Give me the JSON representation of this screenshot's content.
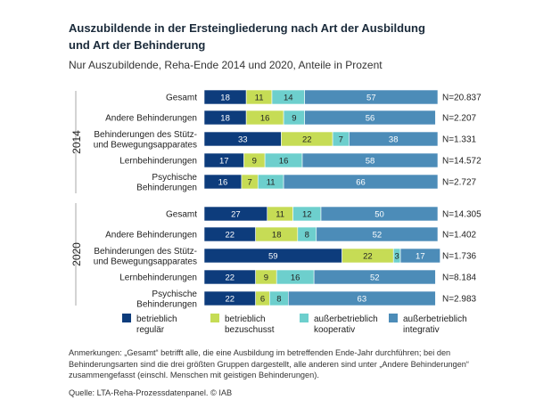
{
  "chart_data": {
    "type": "bar",
    "orientation": "horizontal",
    "stacked": true,
    "title": "Auszubildende in der Ersteingliederung nach Art der Ausbildung und Art der Behinderung",
    "subtitle": "Nur Auszubildende, Reha-Ende 2014 und 2020, Anteile in Prozent",
    "xlim": [
      0,
      100
    ],
    "series": [
      {
        "name": "betrieblich regulär",
        "color": "#0d3c7c",
        "text_color": "#ffffff"
      },
      {
        "name": "betrieblich bezuschusst",
        "color": "#c6dc55",
        "text_color": "#222222"
      },
      {
        "name": "außerbetrieblich kooperativ",
        "color": "#6dcfcd",
        "text_color": "#222222"
      },
      {
        "name": "außerbetrieblich integrativ",
        "color": "#4c8cb8",
        "text_color": "#ffffff"
      }
    ],
    "legend": [
      {
        "line1": "betrieblich",
        "line2": "regulär"
      },
      {
        "line1": "betrieblich",
        "line2": "bezuschusst"
      },
      {
        "line1": "außerbetrieblich",
        "line2": "kooperativ"
      },
      {
        "line1": "außerbetrieblich",
        "line2": "integrativ"
      }
    ],
    "groups": [
      {
        "year": "2014",
        "rows": [
          {
            "label": [
              "Gesamt"
            ],
            "values": [
              18,
              11,
              14,
              57
            ],
            "n": "N=20.837"
          },
          {
            "label": [
              "Andere Behinderungen"
            ],
            "values": [
              18,
              16,
              9,
              56
            ],
            "n": "N=2.207"
          },
          {
            "label": [
              "Behinderungen des Stütz-",
              "und Bewegungsapparates"
            ],
            "values": [
              33,
              22,
              7,
              38
            ],
            "n": "N=1.331"
          },
          {
            "label": [
              "Lernbehinderungen"
            ],
            "values": [
              17,
              9,
              16,
              58
            ],
            "n": "N=14.572"
          },
          {
            "label": [
              "Psychische",
              "Behinderungen"
            ],
            "values": [
              16,
              7,
              11,
              66
            ],
            "n": "N=2.727"
          }
        ]
      },
      {
        "year": "2020",
        "rows": [
          {
            "label": [
              "Gesamt"
            ],
            "values": [
              27,
              11,
              12,
              50
            ],
            "n": "N=14.305"
          },
          {
            "label": [
              "Andere Behinderungen"
            ],
            "values": [
              22,
              18,
              8,
              52
            ],
            "n": "N=1.402"
          },
          {
            "label": [
              "Behinderungen des Stütz-",
              "und Bewegungsapparates"
            ],
            "values": [
              59,
              22,
              3,
              17
            ],
            "n": "N=1.736"
          },
          {
            "label": [
              "Lernbehinderungen"
            ],
            "values": [
              22,
              9,
              16,
              52
            ],
            "n": "N=8.184"
          },
          {
            "label": [
              "Psychische",
              "Behinderungen"
            ],
            "values": [
              22,
              6,
              8,
              63
            ],
            "n": "N=2.983"
          }
        ]
      }
    ]
  },
  "notes": "Anmerkungen: „Gesamt“ betrifft alle, die eine Ausbildung im betreffenden Ende-Jahr durchführen; bei den Behinderungsarten sind die drei größten Gruppen dargestellt, alle anderen sind unter „Andere Behinderungen“ zusammengefasst (einschl. Menschen mit geistigen Behinderungen).",
  "source": "Quelle: LTA-Reha-Prozessdatenpanel. © IAB"
}
